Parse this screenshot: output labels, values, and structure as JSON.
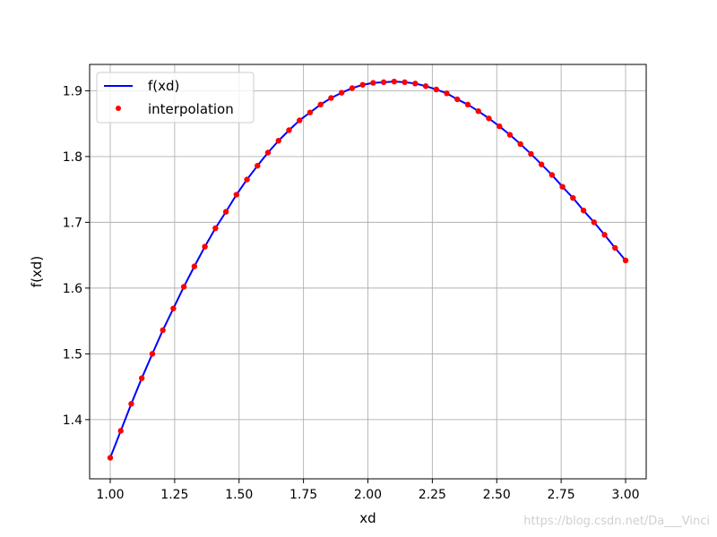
{
  "chart_data": {
    "type": "line",
    "xlabel": "xd",
    "ylabel": "f(xd)",
    "xlim": [
      0.92,
      3.08
    ],
    "ylim": [
      1.31,
      1.94
    ],
    "grid": true,
    "legend_placement": "upper-left",
    "x_ticks": [
      "1.00",
      "1.25",
      "1.50",
      "1.75",
      "2.00",
      "2.25",
      "2.50",
      "2.75",
      "3.00"
    ],
    "y_ticks": [
      "1.4",
      "1.5",
      "1.6",
      "1.7",
      "1.8",
      "1.9"
    ],
    "series": [
      {
        "name": "f(xd)",
        "style": "line",
        "color": "#0000ff",
        "x": [
          1.0,
          1.0408,
          1.0816,
          1.1224,
          1.1633,
          1.2041,
          1.2449,
          1.2857,
          1.3265,
          1.3673,
          1.4082,
          1.449,
          1.4898,
          1.5306,
          1.5714,
          1.6122,
          1.6531,
          1.6939,
          1.7347,
          1.7755,
          1.8163,
          1.8571,
          1.898,
          1.9388,
          1.9796,
          2.0204,
          2.0612,
          2.102,
          2.1429,
          2.1837,
          2.2245,
          2.2653,
          2.3061,
          2.3469,
          2.3878,
          2.4286,
          2.4694,
          2.5102,
          2.551,
          2.5918,
          2.6327,
          2.6735,
          2.7143,
          2.7551,
          2.7959,
          2.8367,
          2.8776,
          2.9184,
          2.9592,
          3.0
        ],
        "y": [
          1.342,
          1.383,
          1.424,
          1.463,
          1.5,
          1.536,
          1.569,
          1.602,
          1.633,
          1.663,
          1.691,
          1.716,
          1.742,
          1.765,
          1.786,
          1.806,
          1.824,
          1.84,
          1.855,
          1.867,
          1.879,
          1.889,
          1.897,
          1.904,
          1.909,
          1.912,
          1.913,
          1.914,
          1.913,
          1.911,
          1.907,
          1.902,
          1.896,
          1.887,
          1.879,
          1.869,
          1.858,
          1.846,
          1.833,
          1.819,
          1.804,
          1.788,
          1.772,
          1.754,
          1.737,
          1.718,
          1.7,
          1.681,
          1.661,
          1.642
        ]
      },
      {
        "name": "interpolation",
        "style": "points",
        "color": "#ff0000",
        "x": [
          1.0,
          1.0408,
          1.0816,
          1.1224,
          1.1633,
          1.2041,
          1.2449,
          1.2857,
          1.3265,
          1.3673,
          1.4082,
          1.449,
          1.4898,
          1.5306,
          1.5714,
          1.6122,
          1.6531,
          1.6939,
          1.7347,
          1.7755,
          1.8163,
          1.8571,
          1.898,
          1.9388,
          1.9796,
          2.0204,
          2.0612,
          2.102,
          2.1429,
          2.1837,
          2.2245,
          2.2653,
          2.3061,
          2.3469,
          2.3878,
          2.4286,
          2.4694,
          2.5102,
          2.551,
          2.5918,
          2.6327,
          2.6735,
          2.7143,
          2.7551,
          2.7959,
          2.8367,
          2.8776,
          2.9184,
          2.9592,
          3.0
        ],
        "y": [
          1.342,
          1.383,
          1.424,
          1.463,
          1.5,
          1.536,
          1.569,
          1.602,
          1.633,
          1.663,
          1.691,
          1.716,
          1.742,
          1.765,
          1.786,
          1.806,
          1.824,
          1.84,
          1.855,
          1.867,
          1.879,
          1.889,
          1.897,
          1.904,
          1.909,
          1.912,
          1.913,
          1.914,
          1.913,
          1.911,
          1.907,
          1.902,
          1.896,
          1.887,
          1.879,
          1.869,
          1.858,
          1.846,
          1.833,
          1.819,
          1.804,
          1.788,
          1.772,
          1.754,
          1.737,
          1.718,
          1.7,
          1.681,
          1.661,
          1.642
        ]
      }
    ]
  },
  "watermark": "https://blog.csdn.net/Da___Vinci"
}
